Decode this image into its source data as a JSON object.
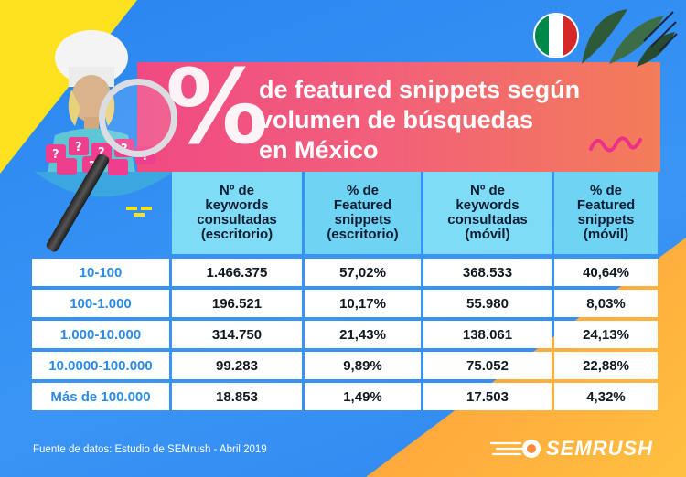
{
  "title": {
    "symbol": "%",
    "lines": [
      "de featured snippets según",
      "volumen de búsquedas",
      "en México"
    ]
  },
  "table": {
    "headers": [
      "Nº de\nkeywords\nconsultadas\n(escritorio)",
      "% de\nFeatured\nsnippets\n(escritorio)",
      "Nº de\nkeywords\nconsultadas\n(móvil)",
      "% de\nFeatured\nsnippets\n(móvil)"
    ],
    "rows": [
      {
        "label": "10-100",
        "values": [
          "1.466.375",
          "57,02%",
          "368.533",
          "40,64%"
        ]
      },
      {
        "label": "100-1.000",
        "values": [
          "196.521",
          "10,17%",
          "55.980",
          "8,03%"
        ]
      },
      {
        "label": "1.000-10.000",
        "values": [
          "314.750",
          "21,43%",
          "138.061",
          "24,13%"
        ]
      },
      {
        "label": "10.0000-100.000",
        "values": [
          "99.283",
          "9,89%",
          "75.052",
          "22,88%"
        ]
      },
      {
        "label": "Más de 100.000",
        "values": [
          "18.853",
          "1,49%",
          "17.503",
          "4,32%"
        ]
      }
    ]
  },
  "chart_data": {
    "type": "table",
    "title": "% de featured snippets según volumen de búsquedas en México",
    "columns": [
      "Nº de keywords consultadas (escritorio)",
      "% de Featured snippets (escritorio)",
      "Nº de keywords consultadas (móvil)",
      "% de Featured snippets (móvil)"
    ],
    "categories": [
      "10-100",
      "100-1.000",
      "1.000-10.000",
      "10.0000-100.000",
      "Más de 100.000"
    ],
    "series": [
      {
        "name": "Nº de keywords consultadas (escritorio)",
        "values": [
          1466375,
          196521,
          314750,
          99283,
          18853
        ]
      },
      {
        "name": "% de Featured snippets (escritorio)",
        "values": [
          57.02,
          10.17,
          21.43,
          9.89,
          1.49
        ]
      },
      {
        "name": "Nº de keywords consultadas (móvil)",
        "values": [
          368533,
          55980,
          138061,
          75052,
          17503
        ]
      },
      {
        "name": "% de Featured snippets (móvil)",
        "values": [
          40.64,
          8.03,
          24.13,
          22.88,
          4.32
        ]
      }
    ]
  },
  "footer": {
    "source": "Fuente de datos: Estudio de SEMrush - Abril 2019",
    "logo_text": "SEMRUSH"
  },
  "colors": {
    "header_bg": "#7fdcf7",
    "label_text": "#2b8be9",
    "banner_start": "#f04a83",
    "banner_end": "#f37c59",
    "flag_green": "#00884a",
    "flag_white": "#ffffff",
    "flag_red": "#d62828"
  },
  "icons": [
    "chef-illustration-icon",
    "magnifier-icon",
    "mexico-flag-icon",
    "leaves-icon",
    "squiggle-icon",
    "semrush-fireball-icon"
  ]
}
